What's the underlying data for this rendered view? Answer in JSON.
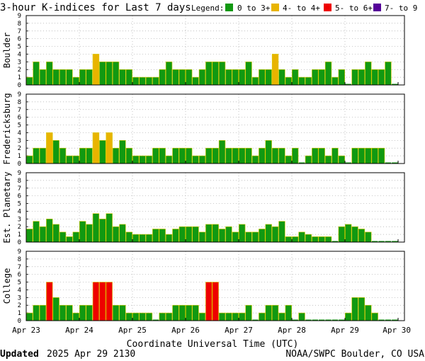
{
  "title": "3-hour K-indices for Last 7 days",
  "legend": {
    "label": "Legend:",
    "items": [
      {
        "label": "0 to 3+",
        "color": "#119911"
      },
      {
        "label": "4- to 4+",
        "color": "#e8b400"
      },
      {
        "label": "5- to 6+",
        "color": "#ee0000"
      },
      {
        "label": "7- to 9",
        "color": "#550099"
      }
    ]
  },
  "footer": {
    "updated_label": "Updated",
    "updated_value": "2025 Apr 29 2130",
    "source": "NOAA/SWPC Boulder, CO USA"
  },
  "chart_data": [
    {
      "type": "bar",
      "title": "Boulder",
      "ylim": [
        0,
        9
      ],
      "yticks": [
        "0",
        "1",
        "2",
        "3",
        "4",
        "5",
        "6",
        "7",
        "8",
        "9"
      ],
      "x_tick_labels": [
        "Apr 23",
        "Apr 24",
        "Apr 25",
        "Apr 26",
        "Apr 27",
        "Apr 28",
        "Apr 29",
        "Apr 30"
      ],
      "xlabel": "",
      "values": [
        1,
        3,
        2,
        3,
        2,
        2,
        2,
        1,
        2,
        2,
        4,
        3,
        3,
        3,
        2,
        2,
        1,
        1,
        1,
        1,
        2,
        3,
        2,
        2,
        2,
        1,
        2,
        3,
        3,
        3,
        2,
        2,
        2,
        3,
        1,
        2,
        2,
        4,
        2,
        1,
        2,
        1,
        1,
        2,
        2,
        3,
        1,
        2,
        0,
        2,
        2,
        3,
        2,
        2,
        3,
        0,
        0
      ]
    },
    {
      "type": "bar",
      "title": "Fredericksburg",
      "ylim": [
        0,
        9
      ],
      "yticks": [
        "0",
        "1",
        "2",
        "3",
        "4",
        "5",
        "6",
        "7",
        "8",
        "9"
      ],
      "x_tick_labels": [
        "Apr 23",
        "Apr 24",
        "Apr 25",
        "Apr 26",
        "Apr 27",
        "Apr 28",
        "Apr 29",
        "Apr 30"
      ],
      "xlabel": "",
      "values": [
        1,
        2,
        2,
        4,
        3,
        2,
        1,
        1,
        2,
        2,
        4,
        3,
        4,
        2,
        3,
        2,
        1,
        1,
        1,
        2,
        2,
        1,
        2,
        2,
        2,
        1,
        1,
        2,
        2,
        3,
        2,
        2,
        2,
        2,
        1,
        2,
        3,
        2,
        2,
        1,
        2,
        0,
        1,
        2,
        2,
        1,
        2,
        1,
        0,
        2,
        2,
        2,
        2,
        2,
        0,
        0,
        0
      ]
    },
    {
      "type": "bar",
      "title": "Est. Planetary",
      "ylim": [
        0,
        9
      ],
      "yticks": [
        "0",
        "1",
        "2",
        "3",
        "4",
        "5",
        "6",
        "7",
        "8",
        "9"
      ],
      "x_tick_labels": [
        "Apr 23",
        "Apr 24",
        "Apr 25",
        "Apr 26",
        "Apr 27",
        "Apr 28",
        "Apr 29",
        "Apr 30"
      ],
      "xlabel": "",
      "values": [
        1.7,
        2.7,
        2,
        3,
        2.3,
        1.3,
        0.7,
        1.3,
        2.7,
        2.3,
        3.7,
        3,
        3.7,
        2,
        2.3,
        1.3,
        1,
        1,
        1,
        1.7,
        1.7,
        1,
        1.7,
        2,
        2,
        2,
        1.3,
        2.3,
        2.3,
        1.7,
        2,
        1.3,
        2.3,
        1.3,
        1.3,
        1.7,
        2.3,
        2,
        2.7,
        0.7,
        0.7,
        1.3,
        1,
        0.7,
        0.7,
        0.7,
        0,
        2,
        2.3,
        2,
        1.7,
        1.3,
        0,
        0,
        0,
        0,
        0
      ]
    },
    {
      "type": "bar",
      "title": "College",
      "ylim": [
        0,
        9
      ],
      "yticks": [
        "0",
        "1",
        "2",
        "3",
        "4",
        "5",
        "6",
        "7",
        "8",
        "9"
      ],
      "x_tick_labels": [
        "Apr 23",
        "Apr 24",
        "Apr 25",
        "Apr 26",
        "Apr 27",
        "Apr 28",
        "Apr 29",
        "Apr 30"
      ],
      "xlabel": "Coordinate Universal Time (UTC)",
      "values": [
        1,
        2,
        2,
        5,
        3,
        2,
        2,
        1,
        2,
        2,
        5,
        5,
        5,
        2,
        2,
        1,
        1,
        1,
        1,
        0,
        1,
        1,
        2,
        2,
        2,
        2,
        1,
        5,
        5,
        1,
        1,
        1,
        1,
        2,
        0,
        1,
        2,
        2,
        1,
        2,
        0,
        1,
        0,
        0,
        0,
        0,
        0,
        0,
        1,
        3,
        3,
        2,
        1,
        0,
        0,
        0,
        0
      ]
    }
  ]
}
